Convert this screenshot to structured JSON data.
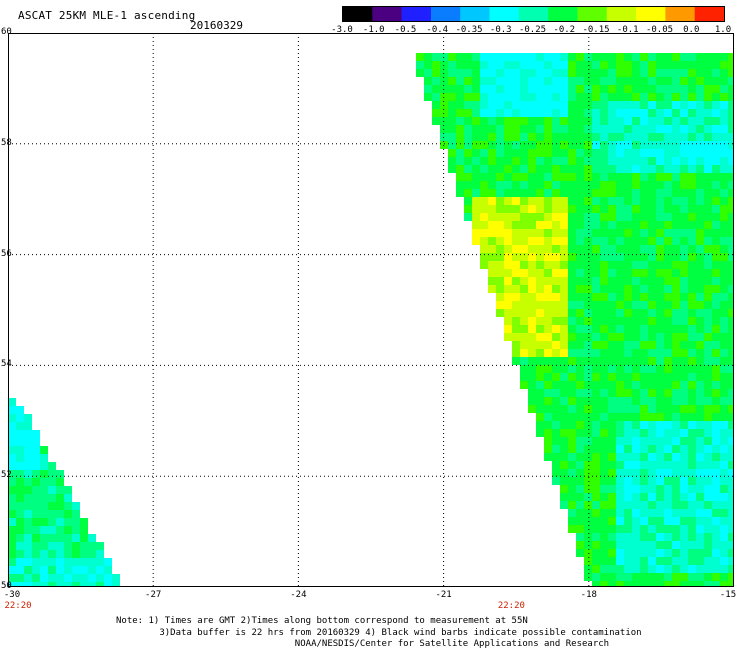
{
  "header": {
    "title": "ASCAT 25KM MLE-1 ascending",
    "date": "20160329"
  },
  "colorbar": {
    "labels": [
      "-3.0",
      "-1.0",
      "-0.5",
      "-0.4",
      "-0.35",
      "-0.3",
      "-0.25",
      "-0.2",
      "-0.15",
      "-0.1",
      "-0.05",
      "0.0",
      "1.0"
    ],
    "colors": [
      "#000000",
      "#4b0082",
      "#1f1fff",
      "#0a7dff",
      "#00c8ff",
      "#00ffff",
      "#00ffb0",
      "#00ff40",
      "#60ff00",
      "#c8ff00",
      "#ffff00",
      "#ff9900",
      "#ff2200"
    ]
  },
  "axes": {
    "lon_ticks": [
      "-30",
      "-27",
      "-24",
      "-21",
      "-18",
      "-15"
    ],
    "lat_ticks": [
      "60",
      "58",
      "56",
      "54",
      "52",
      "50"
    ],
    "lon_range": [
      -30,
      -15
    ],
    "lat_range": [
      50,
      60
    ]
  },
  "time_labels": [
    {
      "text": "22:20",
      "lon": -30
    },
    {
      "text": "22:20",
      "lon": -19.6
    }
  ],
  "notes": [
    "Note: 1) Times are GMT 2)Times along bottom correspond to measurement at 55N",
    "        3)Data buffer is 22 hrs from 20160329 4) Black wind barbs indicate possible contamination",
    "                                 NOAA/NESDIS/Center for Satellite Applications and Research"
  ],
  "swaths": {
    "main": "Right ascending swath, values mostly -0.25 to -0.1",
    "left": "Lower-left partial swath, values mostly -0.3 to -0.15"
  }
}
